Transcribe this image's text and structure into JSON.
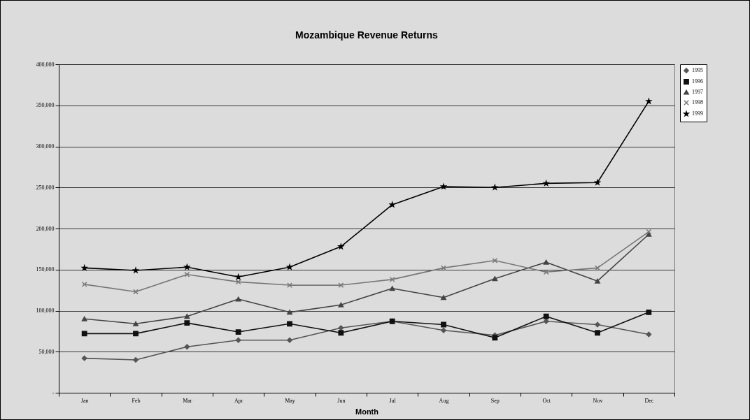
{
  "chart_data": {
    "type": "line",
    "title": "Mozambique Revenue Returns",
    "xlabel": "Month",
    "categories": [
      "Jan",
      "Feb",
      "Mar",
      "Apr",
      "May",
      "Jun",
      "Jul",
      "Aug",
      "Sep",
      "Oct",
      "Nov",
      "Dec"
    ],
    "series": [
      {
        "name": "1995",
        "color": "#555555",
        "marker": "diamond",
        "values": [
          42000,
          40000,
          56000,
          64000,
          64000,
          79000,
          87000,
          76000,
          70000,
          87000,
          83000,
          71000
        ]
      },
      {
        "name": "1996",
        "color": "#111111",
        "marker": "square",
        "values": [
          72000,
          72000,
          85000,
          74000,
          84000,
          73000,
          87000,
          83000,
          67000,
          93000,
          73000,
          98000
        ]
      },
      {
        "name": "1997",
        "color": "#444444",
        "marker": "triangle",
        "values": [
          90000,
          84000,
          93000,
          114000,
          98000,
          107000,
          127000,
          116000,
          139000,
          159000,
          136000,
          193000
        ]
      },
      {
        "name": "1998",
        "color": "#777777",
        "marker": "cross",
        "values": [
          132000,
          123000,
          144000,
          135000,
          131000,
          131000,
          138000,
          152000,
          161000,
          147000,
          152000,
          196000
        ]
      },
      {
        "name": "1999",
        "color": "#000000",
        "marker": "star",
        "values": [
          152000,
          149000,
          153000,
          141000,
          153000,
          178000,
          229000,
          251000,
          250000,
          255000,
          256000,
          355000
        ]
      }
    ],
    "ylim": [
      0,
      400000
    ],
    "yticks": [
      {
        "value": 0,
        "label": "-"
      },
      {
        "value": 50000,
        "label": "50,000"
      },
      {
        "value": 100000,
        "label": "100,000"
      },
      {
        "value": 150000,
        "label": "150,000"
      },
      {
        "value": 200000,
        "label": "200,000"
      },
      {
        "value": 250000,
        "label": "250,000"
      },
      {
        "value": 300000,
        "label": "300,000"
      },
      {
        "value": 350000,
        "label": "350,000"
      },
      {
        "value": 400000,
        "label": "400,000"
      }
    ],
    "grid": "y",
    "legend": "right",
    "line_style": "solid"
  }
}
